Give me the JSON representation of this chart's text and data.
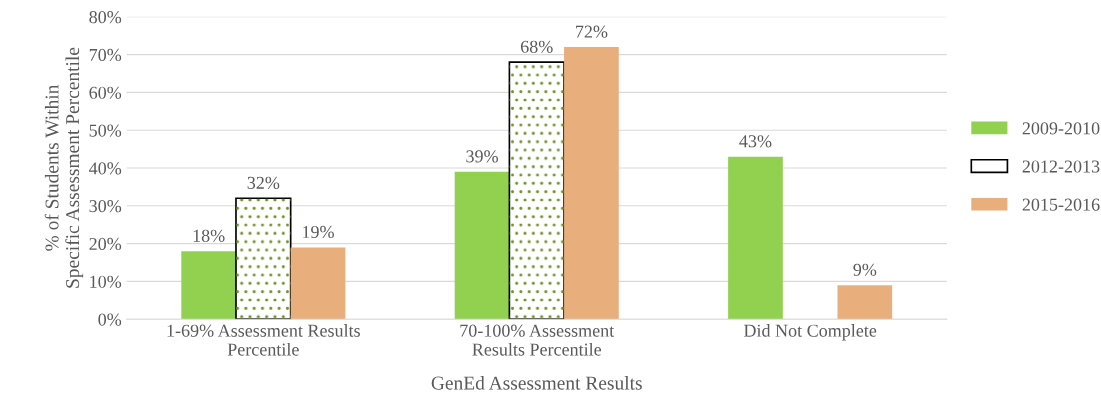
{
  "chart_data": {
    "type": "bar",
    "categories": [
      "1-69% Assessment Results\nPercentile",
      "70-100% Assessment\nResults Percentile",
      "Did Not Complete"
    ],
    "xlabel": "GenEd Assessment Results",
    "ylabel": "% of Students Within\nSpecific Assessment Percentile",
    "series": [
      {
        "name": "2009-2010",
        "color": "#92d050",
        "values": [
          18,
          39,
          43
        ],
        "value_labels": [
          "18%",
          "39%",
          "43%"
        ]
      },
      {
        "name": "2012-2013",
        "color": "#ffffff",
        "values": [
          32,
          68,
          null
        ],
        "value_labels": [
          "32%",
          "68%",
          null
        ]
      },
      {
        "name": "2015-2016",
        "color": "#e8ae7c",
        "values": [
          19,
          72,
          9
        ],
        "value_labels": [
          "19%",
          "72%",
          "9%"
        ]
      }
    ],
    "ylim": [
      0,
      80
    ],
    "yticks": [
      {
        "value": 0,
        "label": "0%"
      },
      {
        "value": 10,
        "label": "10%"
      },
      {
        "value": 20,
        "label": "20%"
      },
      {
        "value": 30,
        "label": "30%"
      },
      {
        "value": 40,
        "label": "40%"
      },
      {
        "value": 50,
        "label": "50%"
      },
      {
        "value": 60,
        "label": "60%"
      },
      {
        "value": 70,
        "label": "70%"
      },
      {
        "value": 80,
        "label": "80%"
      }
    ],
    "grid": "y",
    "legend": "right"
  }
}
